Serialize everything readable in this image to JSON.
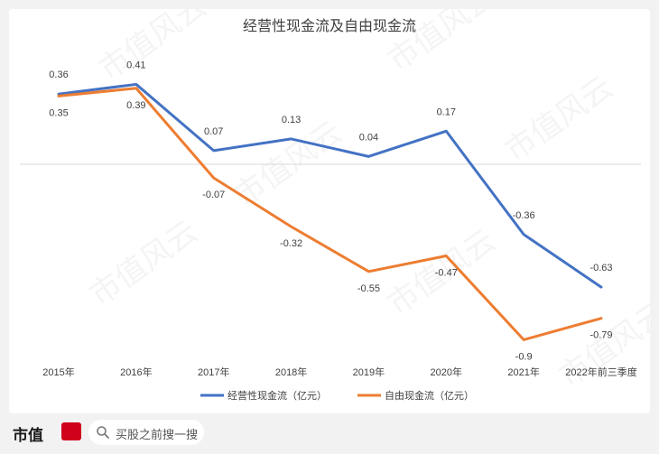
{
  "chart_data": {
    "type": "line",
    "title": "经营性现金流及自由现金流",
    "categories": [
      "2015年",
      "2016年",
      "2017年",
      "2018年",
      "2019年",
      "2020年",
      "2021年",
      "2022年前三季度"
    ],
    "series": [
      {
        "name": "经营性现金流（亿元）",
        "values": [
          0.36,
          0.41,
          0.07,
          0.13,
          0.04,
          0.17,
          -0.36,
          -0.63
        ],
        "labels": [
          "0.36",
          "0.41",
          "0.07",
          "0.13",
          "0.04",
          "0.17",
          "-0.36",
          "-0.63"
        ],
        "color": "#4472c4"
      },
      {
        "name": "自由现金流（亿元）",
        "values": [
          0.35,
          0.39,
          -0.07,
          -0.32,
          -0.55,
          -0.47,
          -0.9,
          -0.79
        ],
        "labels": [
          "0.35",
          "0.39",
          "-0.07",
          "-0.32",
          "-0.55",
          "-0.47",
          "-0.9",
          "-0.79"
        ],
        "color": "#ed7d31"
      }
    ],
    "ylim": [
      -1.0,
      0.5
    ],
    "grid": false,
    "legend": "bottom"
  },
  "watermark": "市值风云",
  "footer": {
    "brand": "市值",
    "search_placeholder": "买股之前搜一搜",
    "search_icon": "search-icon"
  }
}
